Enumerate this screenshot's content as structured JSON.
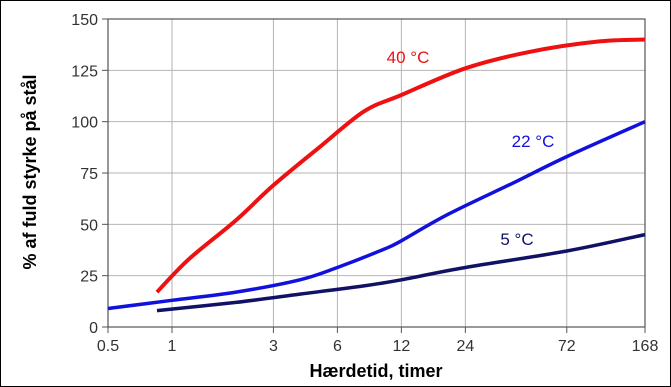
{
  "chart_data": {
    "type": "line",
    "xlabel": "Hærdetid, timer",
    "ylabel": "% af fuld styrke på stål",
    "x_scale": "log",
    "xlim": [
      0.5,
      168
    ],
    "ylim": [
      0,
      150
    ],
    "x_ticks": [
      0.5,
      1,
      3,
      6,
      12,
      24,
      72,
      168
    ],
    "x_tick_labels": [
      "0.5",
      "1",
      "3",
      "6",
      "12",
      "24",
      "72",
      "168"
    ],
    "y_ticks": [
      0,
      25,
      50,
      75,
      100,
      125,
      150
    ],
    "y_tick_labels": [
      "0",
      "25",
      "50",
      "75",
      "100",
      "125",
      "150"
    ],
    "grid": true,
    "series": [
      {
        "name": "40 °C",
        "color": "#ee1111",
        "x": [
          0.85,
          1.2,
          2,
          3,
          5,
          8,
          12,
          24,
          48,
          100,
          168
        ],
        "y": [
          17,
          33,
          52,
          69,
          88,
          105,
          113,
          126,
          134,
          139,
          140
        ]
      },
      {
        "name": "22 °C",
        "color": "#1111dd",
        "x": [
          0.5,
          1,
          2,
          4,
          6,
          10,
          12,
          20,
          40,
          72,
          168
        ],
        "y": [
          9,
          13,
          17,
          23,
          29,
          38,
          42,
          55,
          70,
          83,
          100
        ]
      },
      {
        "name": "5 °C",
        "color": "#111166",
        "x": [
          0.85,
          2,
          4,
          8,
          12,
          24,
          72,
          168
        ],
        "y": [
          8,
          12,
          16,
          20,
          23,
          29,
          37,
          45
        ]
      }
    ]
  }
}
